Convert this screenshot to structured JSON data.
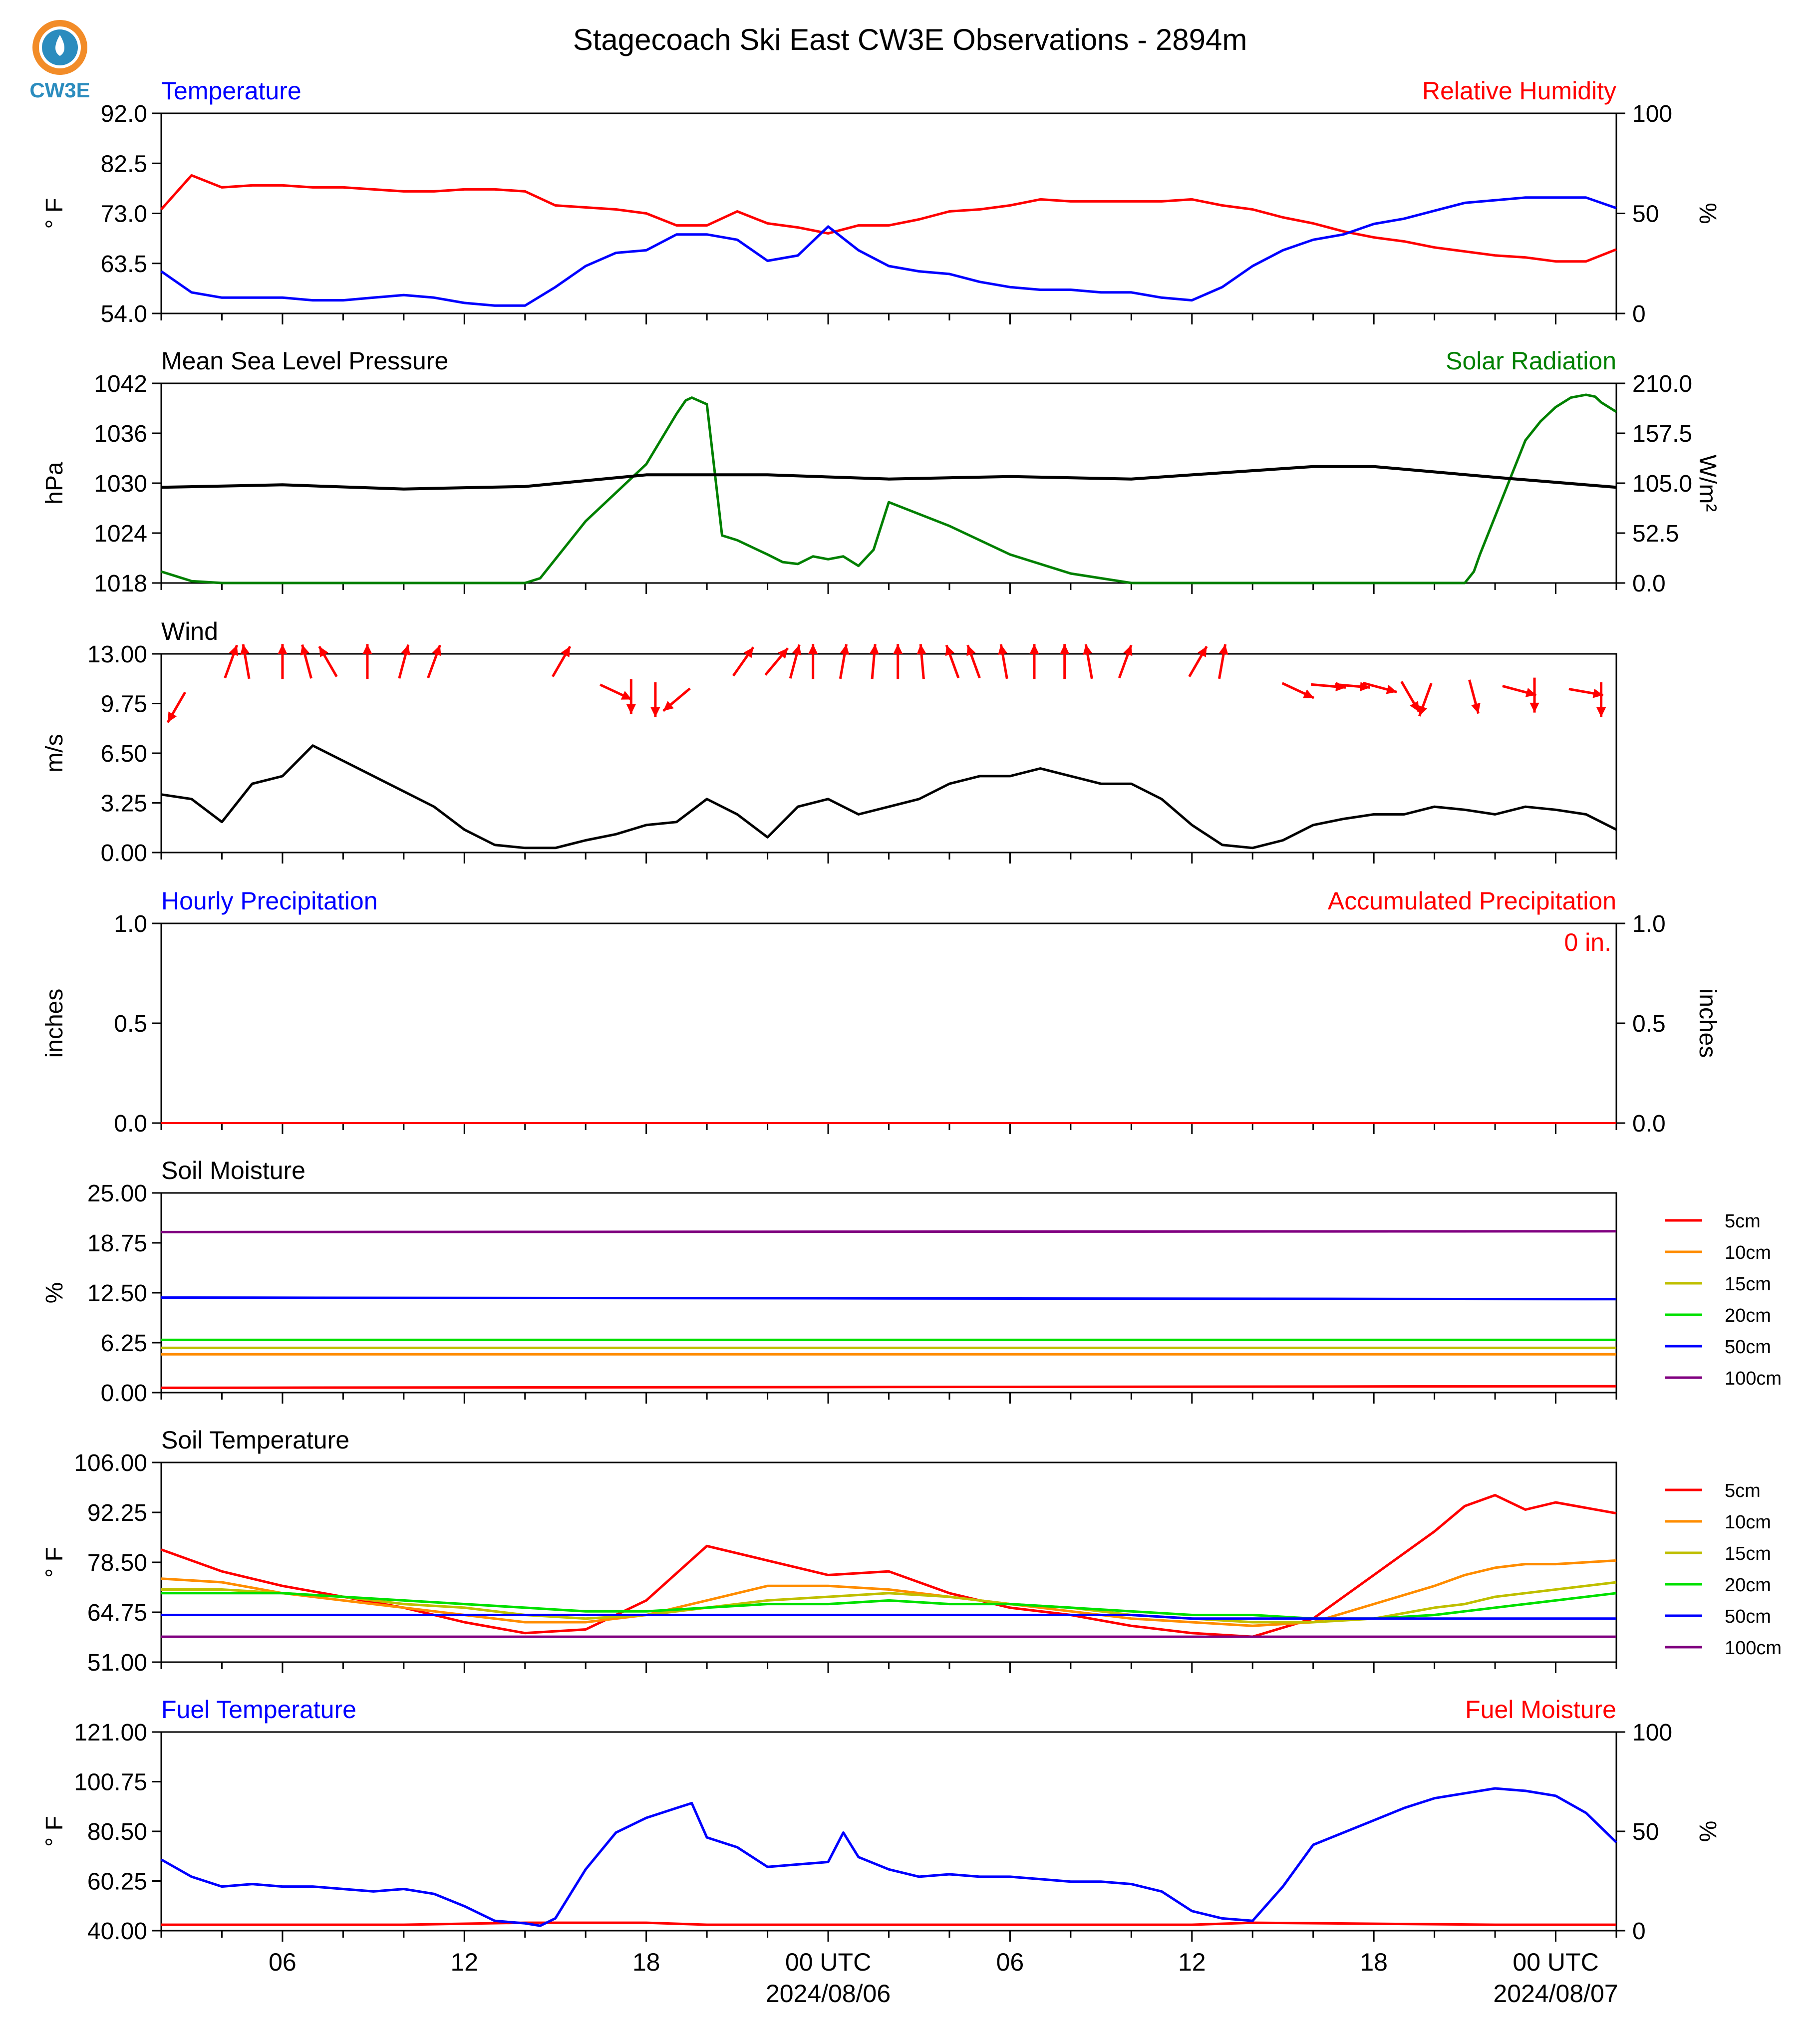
{
  "page": {
    "title": "Stagecoach Ski East CW3E Observations - 2894m",
    "logo_text": "CW3E"
  },
  "x_axis": {
    "tick_labels": [
      "06",
      "12",
      "18",
      "00 UTC",
      "06",
      "12",
      "18",
      "00 UTC"
    ],
    "date_labels": [
      "2024/08/06",
      "2024/08/07"
    ]
  },
  "colors": {
    "red": "#ff0000",
    "blue": "#0000ff",
    "green": "#008000",
    "black": "#000000",
    "orange": "#ff8c00",
    "olive": "#bfbf00",
    "lime": "#00e000",
    "purple": "#800080"
  },
  "panels": [
    {
      "id": "temp_rh",
      "left_title": "Temperature",
      "right_title": "Relative Humidity",
      "left_ylabel": "° F",
      "right_ylabel": "%",
      "left_ticks": [
        "92.0",
        "82.5",
        "73.0",
        "63.5",
        "54.0"
      ],
      "right_ticks": [
        "100",
        "50",
        "0"
      ]
    },
    {
      "id": "pres_solar",
      "left_title": "Mean Sea Level Pressure",
      "right_title": "Solar Radiation",
      "left_ylabel": "hPa",
      "right_ylabel": "W/m²",
      "left_ticks": [
        "1042",
        "1036",
        "1030",
        "1024",
        "1018"
      ],
      "right_ticks": [
        "210.0",
        "157.5",
        "105.0",
        "52.5",
        "0.0"
      ]
    },
    {
      "id": "wind",
      "left_title": "Wind",
      "right_title": "",
      "left_ylabel": "m/s",
      "right_ylabel": "",
      "left_ticks": [
        "13.00",
        "9.75",
        "6.50",
        "3.25",
        "0.00"
      ],
      "right_ticks": []
    },
    {
      "id": "precip",
      "left_title": "Hourly Precipitation",
      "right_title": "Accumulated Precipitation",
      "left_ylabel": "inches",
      "right_ylabel": "inches",
      "annotation": "0 in.",
      "left_ticks": [
        "1.0",
        "0.5",
        "0.0"
      ],
      "right_ticks": [
        "1.0",
        "0.5",
        "0.0"
      ]
    },
    {
      "id": "soil_moist",
      "left_title": "Soil Moisture",
      "right_title": "",
      "left_ylabel": "%",
      "right_ylabel": "",
      "left_ticks": [
        "25.00",
        "18.75",
        "12.50",
        "6.25",
        "0.00"
      ],
      "right_ticks": []
    },
    {
      "id": "soil_temp",
      "left_title": "Soil Temperature",
      "right_title": "",
      "left_ylabel": "° F",
      "right_ylabel": "",
      "left_ticks": [
        "106.00",
        "92.25",
        "78.50",
        "64.75",
        "51.00"
      ],
      "right_ticks": []
    },
    {
      "id": "fuel",
      "left_title": "Fuel Temperature",
      "right_title": "Fuel Moisture",
      "left_ylabel": "° F",
      "right_ylabel": "%",
      "left_ticks": [
        "121.00",
        "100.75",
        "80.50",
        "60.25",
        "40.00"
      ],
      "right_ticks": [
        "100",
        "50",
        "0"
      ]
    }
  ],
  "soil_legend": [
    "5cm",
    "10cm",
    "15cm",
    "20cm",
    "50cm",
    "100cm"
  ],
  "chart_data": {
    "type": "line",
    "x_unit": "hours from 2024-08-05 02 UTC",
    "x_range": [
      0,
      48
    ],
    "temperature_F": {
      "x": [
        0,
        1,
        2,
        3,
        4,
        5,
        6,
        7,
        8,
        9,
        10,
        11,
        12,
        13,
        14,
        15,
        16,
        17,
        18,
        19,
        20,
        21,
        22,
        23,
        24,
        25,
        26,
        27,
        28,
        29,
        30,
        31,
        32,
        33,
        34,
        35,
        36,
        37,
        38,
        39,
        40,
        41,
        42,
        43,
        44,
        45,
        46,
        47,
        48
      ],
      "y": [
        62,
        58,
        57,
        57,
        57,
        56.5,
        56.5,
        57,
        57.5,
        57,
        56,
        55.5,
        55.5,
        59,
        63,
        65.5,
        66,
        69,
        69,
        68,
        64,
        65,
        70.5,
        66,
        63,
        62,
        61.5,
        60,
        59,
        58.5,
        58.5,
        58,
        58,
        57,
        56.5,
        59,
        63,
        66,
        68,
        69,
        71,
        72,
        73.5,
        75,
        75.5,
        76,
        76,
        76,
        74
      ]
    },
    "relative_humidity_pct": {
      "x": [
        0,
        1,
        2,
        3,
        4,
        5,
        6,
        7,
        8,
        9,
        10,
        11,
        12,
        13,
        14,
        15,
        16,
        17,
        18,
        19,
        20,
        21,
        22,
        23,
        24,
        25,
        26,
        27,
        28,
        29,
        30,
        31,
        32,
        33,
        34,
        35,
        36,
        37,
        38,
        39,
        40,
        41,
        42,
        43,
        44,
        45,
        46,
        47,
        48
      ],
      "y": [
        52,
        69,
        63,
        64,
        64,
        63,
        63,
        62,
        61,
        61,
        62,
        62,
        61,
        54,
        53,
        52,
        50,
        44,
        44,
        51,
        45,
        43,
        40,
        44,
        44,
        47,
        51,
        52,
        54,
        57,
        56,
        56,
        56,
        56,
        57,
        54,
        52,
        48,
        45,
        41,
        38,
        36,
        33,
        31,
        29,
        28,
        26,
        26,
        32
      ]
    },
    "msl_pressure_hPa": {
      "x": [
        0,
        4,
        8,
        12,
        16,
        20,
        24,
        28,
        32,
        36,
        38,
        40,
        44,
        48
      ],
      "y": [
        1029.5,
        1029.8,
        1029.3,
        1029.6,
        1031,
        1031,
        1030.5,
        1030.8,
        1030.5,
        1031.5,
        1032,
        1032,
        1030.7,
        1029.5
      ]
    },
    "solar_radiation_Wm2": {
      "x": [
        0,
        1,
        2,
        4,
        6,
        8,
        10,
        11,
        11.5,
        12,
        12.5,
        14,
        16,
        17,
        17.3,
        17.5,
        18,
        18.5,
        19,
        20,
        20.5,
        21,
        21.5,
        22,
        22.5,
        23,
        23.5,
        24,
        26,
        28,
        30,
        32,
        34,
        35,
        35.5,
        36,
        37,
        38,
        40,
        42,
        43,
        43.3,
        43.5,
        44,
        44.5,
        45,
        45.5,
        46,
        46.5,
        47,
        47.3,
        47.5,
        48
      ],
      "y": [
        12,
        2,
        0,
        0,
        0,
        0,
        0,
        0,
        0,
        0,
        5,
        65,
        125,
        178,
        192,
        195,
        188,
        50,
        45,
        30,
        22,
        20,
        28,
        25,
        28,
        18,
        35,
        85,
        60,
        30,
        10,
        0,
        0,
        0,
        0,
        0,
        0,
        0,
        0,
        0,
        0,
        12,
        30,
        70,
        110,
        150,
        170,
        185,
        195,
        198,
        196,
        190,
        180
      ]
    },
    "wind_speed_ms": {
      "x": [
        0,
        1,
        2,
        3,
        4,
        5,
        6,
        7,
        8,
        9,
        10,
        11,
        12,
        13,
        14,
        15,
        16,
        17,
        18,
        19,
        20,
        21,
        22,
        23,
        24,
        25,
        26,
        27,
        28,
        29,
        30,
        31,
        32,
        33,
        34,
        35,
        36,
        37,
        38,
        39,
        40,
        41,
        42,
        43,
        44,
        45,
        46,
        47,
        48
      ],
      "y": [
        3.8,
        3.5,
        2,
        4.5,
        5,
        7,
        6,
        5,
        4,
        3,
        1.5,
        0.5,
        0.3,
        0.3,
        0.8,
        1.2,
        1.8,
        2,
        3.5,
        2.5,
        1,
        3,
        3.5,
        2.5,
        3,
        3.5,
        4.5,
        5,
        5,
        5.5,
        5,
        4.5,
        4.5,
        3.5,
        1.8,
        0.5,
        0.3,
        0.8,
        1.8,
        2.2,
        2.5,
        2.5,
        3,
        2.8,
        2.5,
        3,
        2.8,
        2.5,
        1.5
      ]
    },
    "hourly_precip_in": {
      "x": [
        0,
        48
      ],
      "y": [
        0,
        0
      ]
    },
    "accumulated_precip_in": {
      "x": [
        0,
        48
      ],
      "y": [
        0,
        0
      ]
    },
    "soil_moisture_pct": {
      "x": [
        0,
        48
      ],
      "series": [
        {
          "name": "5cm",
          "values": [
            0.6,
            0.8
          ]
        },
        {
          "name": "10cm",
          "values": [
            4.8,
            4.8
          ]
        },
        {
          "name": "15cm",
          "values": [
            5.6,
            5.6
          ]
        },
        {
          "name": "20cm",
          "values": [
            6.6,
            6.6
          ]
        },
        {
          "name": "50cm",
          "values": [
            11.9,
            11.7
          ]
        },
        {
          "name": "100cm",
          "values": [
            20.1,
            20.2
          ]
        }
      ]
    },
    "soil_temperature_F": {
      "x": [
        0,
        2,
        4,
        6,
        8,
        10,
        12,
        14,
        16,
        18,
        20,
        22,
        24,
        26,
        28,
        30,
        32,
        34,
        36,
        38,
        40,
        42,
        43,
        44,
        45,
        46,
        48
      ],
      "series": [
        {
          "name": "5cm",
          "values": [
            82,
            76,
            72,
            69,
            66,
            62,
            59,
            60,
            68,
            83,
            79,
            75,
            76,
            70,
            66,
            64,
            61,
            59,
            58,
            63,
            75,
            87,
            94,
            97,
            93,
            95,
            92
          ]
        },
        {
          "name": "10cm",
          "values": [
            74,
            73,
            70,
            68,
            66,
            64,
            62,
            62,
            64,
            68,
            72,
            72,
            71,
            69,
            67,
            65,
            63,
            62,
            61,
            62,
            67,
            72,
            75,
            77,
            78,
            78,
            79
          ]
        },
        {
          "name": "15cm",
          "values": [
            71,
            71,
            70,
            69,
            67,
            66,
            64,
            63,
            64,
            66,
            68,
            69,
            70,
            69,
            67,
            66,
            64,
            63,
            62,
            62,
            63,
            66,
            67,
            69,
            70,
            71,
            73
          ]
        },
        {
          "name": "20cm",
          "values": [
            70,
            70,
            70,
            69,
            68,
            67,
            66,
            65,
            65,
            66,
            67,
            67,
            68,
            67,
            67,
            66,
            65,
            64,
            64,
            63,
            63,
            64,
            65,
            66,
            67,
            68,
            70
          ]
        },
        {
          "name": "50cm",
          "values": [
            64,
            64,
            64,
            64,
            64,
            64,
            64,
            64,
            64,
            64,
            64,
            64,
            64,
            64,
            64,
            64,
            64,
            63,
            63,
            63,
            63,
            63,
            63,
            63,
            63,
            63,
            63
          ]
        },
        {
          "name": "100cm",
          "values": [
            58,
            58,
            58,
            58,
            58,
            58,
            58,
            58,
            58,
            58,
            58,
            58,
            58,
            58,
            58,
            58,
            58,
            58,
            58,
            58,
            58,
            58,
            58,
            58,
            58,
            58,
            58
          ]
        }
      ]
    },
    "fuel_temperature_F": {
      "x": [
        0,
        1,
        2,
        3,
        4,
        5,
        6,
        7,
        8,
        9,
        10,
        11,
        12,
        12.5,
        13,
        14,
        15,
        16,
        17,
        17.5,
        18,
        19,
        20,
        21,
        22,
        22.5,
        23,
        24,
        25,
        26,
        27,
        28,
        29,
        30,
        31,
        32,
        33,
        34,
        35,
        36,
        37,
        38,
        39,
        40,
        41,
        42,
        43,
        44,
        45,
        46,
        47,
        48
      ],
      "y": [
        69,
        62,
        58,
        59,
        58,
        58,
        57,
        56,
        57,
        55,
        50,
        44,
        43,
        42,
        45,
        65,
        80,
        86,
        90,
        92,
        78,
        74,
        66,
        67,
        68,
        80,
        70,
        65,
        62,
        63,
        62,
        62,
        61,
        60,
        60,
        59,
        56,
        48,
        45,
        44,
        58,
        75,
        80,
        85,
        90,
        94,
        96,
        98,
        97,
        95,
        88,
        76
      ]
    },
    "fuel_moisture_pct": {
      "x": [
        0,
        4,
        8,
        12,
        14,
        16,
        18,
        20,
        22,
        24,
        28,
        32,
        34,
        36,
        40,
        44,
        48
      ],
      "y": [
        3,
        3,
        3,
        4,
        4,
        4,
        3,
        3,
        3,
        3,
        3,
        3,
        3,
        4,
        3.5,
        3,
        3
      ]
    }
  }
}
